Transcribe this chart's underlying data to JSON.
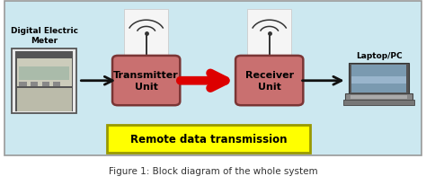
{
  "bg_color": "#cce8f0",
  "outer_border_color": "#999999",
  "box_color": "#c97070",
  "box_edge_color": "#7a3535",
  "box1_label": "Transmitter\nUnit",
  "box2_label": "Receiver\nUnit",
  "label_meter": "Digital Electric\nMeter",
  "label_laptop": "Laptop/PC",
  "remote_label": "Remote data transmission",
  "remote_bg": "#ffff00",
  "remote_border": "#999900",
  "caption": "Figure 1: Block diagram of the whole system",
  "caption_color": "#333333",
  "arrow_black_color": "#111111",
  "arrow_red_color": "#dd0000",
  "antenna_bg": "#f5f5f5",
  "figsize": [
    4.74,
    2.07
  ],
  "dpi": 100
}
